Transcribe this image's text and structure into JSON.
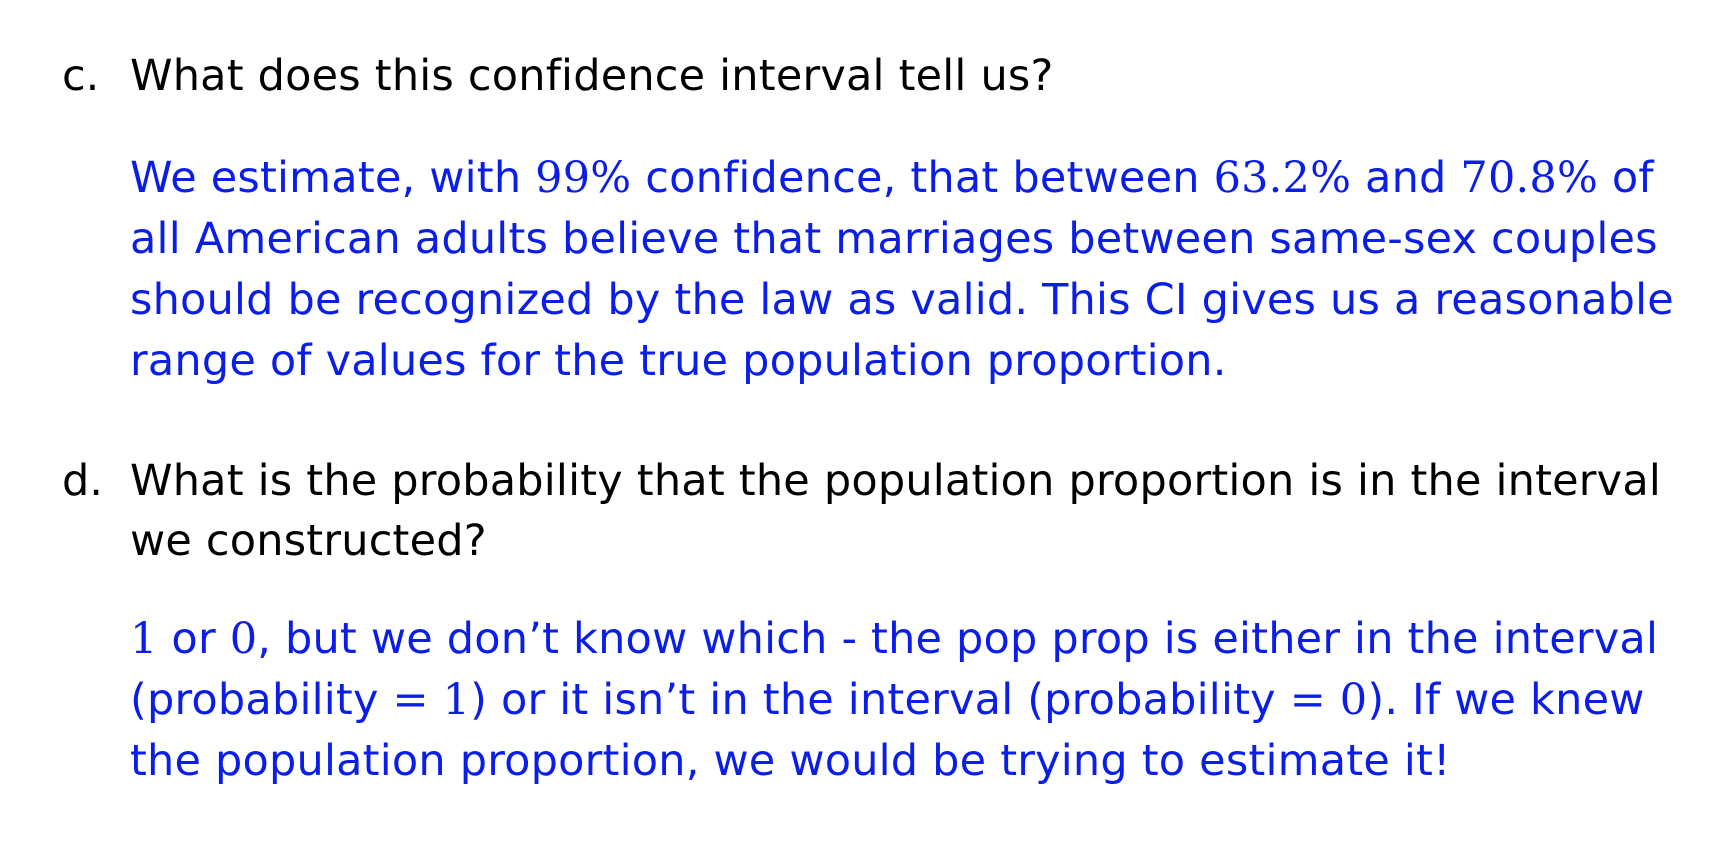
{
  "item_c": {
    "marker": "c.",
    "question": "What does this confidence interval tell us?",
    "answer": {
      "t1": "We estimate, with ",
      "m1": "99%",
      "t2": " confidence, that between ",
      "m2": "63.2%",
      "t3": " and ",
      "m3": "70.8%",
      "t4": " of all American adults believe that marriages between same-sex couples should be recognized by the law as valid. This CI gives us a reasonable range of values for the true population proportion."
    }
  },
  "item_d": {
    "marker": "d.",
    "question": "What is the probability that the population proportion is in the interval we constructed?",
    "answer": {
      "m1": "1",
      "t1": " or ",
      "m2": "0",
      "t2": ", but we don’t know which - the pop prop is either in the interval (probability ",
      "m3": "= 1",
      "t3": ") or it isn’t in the interval (probability ",
      "m4": "= 0",
      "t4": "). If we knew the population proportion, we would be trying to estimate it!"
    }
  },
  "colors": {
    "answer_text": "#0a1ee8",
    "question_text": "#000000"
  }
}
